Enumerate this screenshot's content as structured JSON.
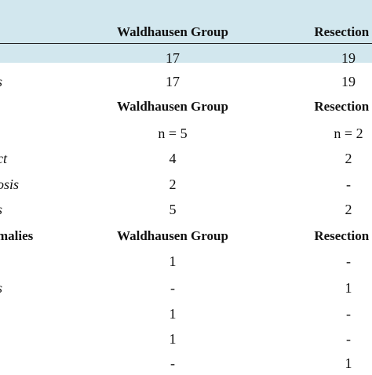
{
  "table": {
    "rows": [
      {
        "cells": [
          "",
          "Waldhausen Group",
          "Resection G"
        ],
        "kind": "header"
      },
      {
        "cells": [
          "",
          "17",
          "19"
        ],
        "kind": "data"
      },
      {
        "cells": [
          "s",
          "17",
          "19"
        ],
        "kind": "data"
      },
      {
        "cells": [
          "",
          "Waldhausen Group",
          "Resection G"
        ],
        "kind": "header"
      },
      {
        "cells": [
          "",
          "n = 5",
          "n = 2"
        ],
        "kind": "data"
      },
      {
        "cells": [
          "ct",
          "4",
          "2"
        ],
        "kind": "data"
      },
      {
        "cells": [
          "osis",
          "2",
          "-"
        ],
        "kind": "data"
      },
      {
        "cells": [
          "s",
          "5",
          "2"
        ],
        "kind": "data"
      },
      {
        "cells": [
          "malies",
          "Waldhausen Group",
          "Resection G"
        ],
        "kind": "header"
      },
      {
        "cells": [
          "",
          "1",
          "-"
        ],
        "kind": "data"
      },
      {
        "cells": [
          "s",
          "-",
          "1"
        ],
        "kind": "data"
      },
      {
        "cells": [
          "",
          "1",
          "-"
        ],
        "kind": "data"
      },
      {
        "cells": [
          "",
          "1",
          "-"
        ],
        "kind": "data"
      },
      {
        "cells": [
          "",
          "-",
          "1"
        ],
        "kind": "data"
      }
    ]
  }
}
